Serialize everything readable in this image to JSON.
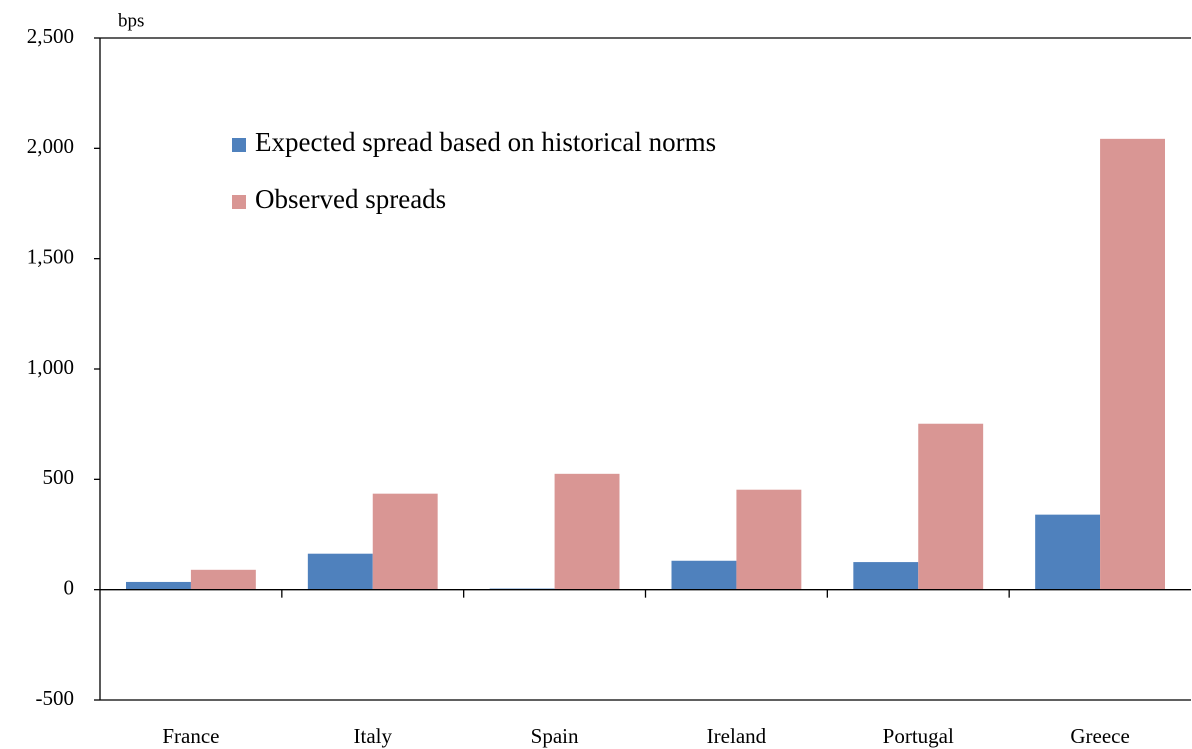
{
  "chart_data": {
    "type": "bar",
    "y_axis_label": "bps",
    "categories": [
      "France",
      "Italy",
      "Spain",
      "Ireland",
      "Portugal",
      "Greece"
    ],
    "series": [
      {
        "name": "Expected spread based on historical norms",
        "color": "#4f81bd",
        "values": [
          35,
          163,
          5,
          131,
          125,
          340
        ]
      },
      {
        "name": "Observed spreads",
        "color": "#d99694",
        "values": [
          90,
          435,
          525,
          453,
          752,
          2043
        ]
      }
    ],
    "ylim": [
      -500,
      2500
    ],
    "yticks": [
      -500,
      0,
      500,
      {
        "value": 1000,
        "label": "1,000"
      },
      {
        "value": 1500,
        "label": "1,500"
      },
      {
        "value": 2000,
        "label": "2,000"
      },
      {
        "value": 2500,
        "label": "2,500"
      }
    ],
    "grid": false
  }
}
